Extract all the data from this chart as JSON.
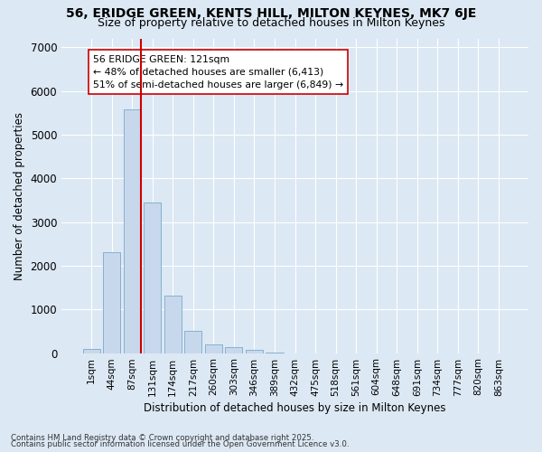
{
  "title_line1": "56, ERIDGE GREEN, KENTS HILL, MILTON KEYNES, MK7 6JE",
  "title_line2": "Size of property relative to detached houses in Milton Keynes",
  "xlabel": "Distribution of detached houses by size in Milton Keynes",
  "ylabel": "Number of detached properties",
  "bar_labels": [
    "1sqm",
    "44sqm",
    "87sqm",
    "131sqm",
    "174sqm",
    "217sqm",
    "260sqm",
    "303sqm",
    "346sqm",
    "389sqm",
    "432sqm",
    "475sqm",
    "518sqm",
    "561sqm",
    "604sqm",
    "648sqm",
    "691sqm",
    "734sqm",
    "777sqm",
    "820sqm",
    "863sqm"
  ],
  "bar_values": [
    100,
    2300,
    5580,
    3450,
    1320,
    500,
    195,
    130,
    65,
    20,
    0,
    0,
    0,
    0,
    0,
    0,
    0,
    0,
    0,
    0,
    0
  ],
  "bar_color": "#c8d8ec",
  "bar_edgecolor": "#7aaac8",
  "vline_color": "#cc0000",
  "annotation_text": "56 ERIDGE GREEN: 121sqm\n← 48% of detached houses are smaller (6,413)\n51% of semi-detached houses are larger (6,849) →",
  "ylim": [
    0,
    7200
  ],
  "yticks": [
    0,
    1000,
    2000,
    3000,
    4000,
    5000,
    6000,
    7000
  ],
  "bg_color": "#dce8f4",
  "grid_color": "#ffffff",
  "footer_line1": "Contains HM Land Registry data © Crown copyright and database right 2025.",
  "footer_line2": "Contains public sector information licensed under the Open Government Licence v3.0."
}
